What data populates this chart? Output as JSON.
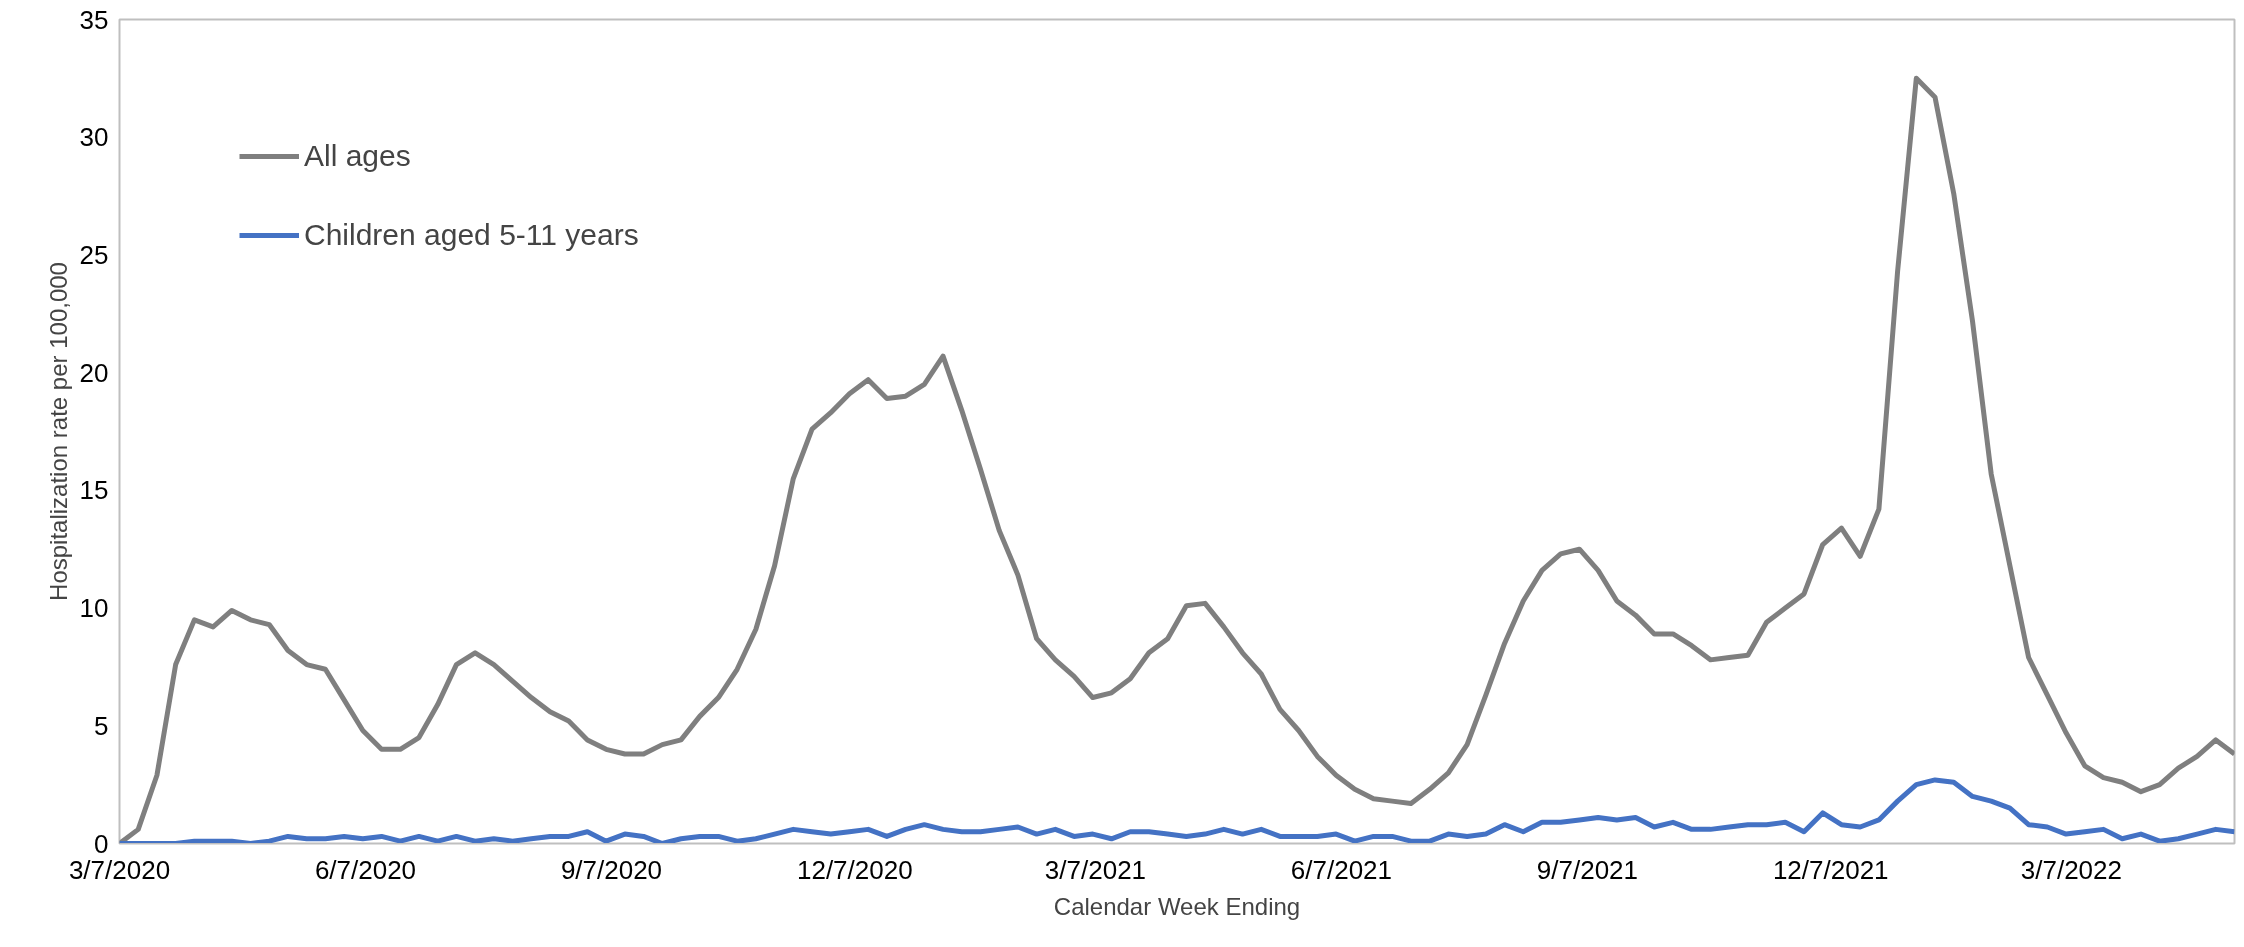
{
  "chart_data": {
    "type": "line",
    "xlabel": "Calendar Week Ending",
    "ylabel": "Hospitalization rate per 100,000",
    "x": [
      "2020-03-07",
      "2020-03-14",
      "2020-03-21",
      "2020-03-28",
      "2020-04-04",
      "2020-04-11",
      "2020-04-18",
      "2020-04-25",
      "2020-05-02",
      "2020-05-09",
      "2020-05-16",
      "2020-05-23",
      "2020-05-30",
      "2020-06-06",
      "2020-06-13",
      "2020-06-20",
      "2020-06-27",
      "2020-07-04",
      "2020-07-11",
      "2020-07-18",
      "2020-07-25",
      "2020-08-01",
      "2020-08-08",
      "2020-08-15",
      "2020-08-22",
      "2020-08-29",
      "2020-09-05",
      "2020-09-12",
      "2020-09-19",
      "2020-09-26",
      "2020-10-03",
      "2020-10-10",
      "2020-10-17",
      "2020-10-24",
      "2020-10-31",
      "2020-11-07",
      "2020-11-14",
      "2020-11-21",
      "2020-11-28",
      "2020-12-05",
      "2020-12-12",
      "2020-12-19",
      "2020-12-26",
      "2021-01-02",
      "2021-01-09",
      "2021-01-16",
      "2021-01-23",
      "2021-01-30",
      "2021-02-06",
      "2021-02-13",
      "2021-02-20",
      "2021-02-27",
      "2021-03-06",
      "2021-03-13",
      "2021-03-20",
      "2021-03-27",
      "2021-04-03",
      "2021-04-10",
      "2021-04-17",
      "2021-04-24",
      "2021-05-01",
      "2021-05-08",
      "2021-05-15",
      "2021-05-22",
      "2021-05-29",
      "2021-06-05",
      "2021-06-12",
      "2021-06-19",
      "2021-06-26",
      "2021-07-03",
      "2021-07-10",
      "2021-07-17",
      "2021-07-24",
      "2021-07-31",
      "2021-08-07",
      "2021-08-14",
      "2021-08-21",
      "2021-08-28",
      "2021-09-04",
      "2021-09-11",
      "2021-09-18",
      "2021-09-25",
      "2021-10-02",
      "2021-10-09",
      "2021-10-16",
      "2021-10-23",
      "2021-10-30",
      "2021-11-06",
      "2021-11-13",
      "2021-11-20",
      "2021-11-27",
      "2021-12-04",
      "2021-12-11",
      "2021-12-18",
      "2021-12-25",
      "2022-01-01",
      "2022-01-08",
      "2022-01-15",
      "2022-01-22",
      "2022-01-29",
      "2022-02-05",
      "2022-02-12",
      "2022-02-19",
      "2022-02-26",
      "2022-03-05",
      "2022-03-12",
      "2022-03-19",
      "2022-03-26",
      "2022-04-02",
      "2022-04-09",
      "2022-04-16",
      "2022-04-23",
      "2022-04-30",
      "2022-05-07"
    ],
    "series": [
      {
        "name": "All ages",
        "color": "#7f7f7f",
        "values": [
          0,
          0.6,
          2.9,
          7.6,
          9.5,
          9.2,
          9.9,
          9.5,
          9.3,
          8.2,
          7.6,
          7.4,
          6.1,
          4.8,
          4.0,
          4.0,
          4.5,
          5.9,
          7.6,
          8.1,
          7.6,
          6.9,
          6.2,
          5.6,
          5.2,
          4.4,
          4.0,
          3.8,
          3.8,
          4.2,
          4.4,
          5.4,
          6.2,
          7.4,
          9.1,
          11.8,
          15.5,
          17.6,
          18.3,
          19.1,
          19.7,
          18.9,
          19.0,
          19.5,
          20.7,
          18.4,
          15.9,
          13.3,
          11.4,
          8.7,
          7.8,
          7.1,
          6.2,
          6.4,
          7.0,
          8.1,
          8.7,
          10.1,
          10.2,
          9.2,
          8.1,
          7.2,
          5.7,
          4.8,
          3.7,
          2.9,
          2.3,
          1.9,
          1.8,
          1.7,
          2.3,
          3.0,
          4.2,
          6.3,
          8.5,
          10.3,
          11.6,
          12.3,
          12.5,
          11.6,
          10.3,
          9.7,
          8.9,
          8.9,
          8.4,
          7.8,
          7.9,
          8.0,
          9.4,
          10.0,
          10.6,
          12.7,
          13.4,
          12.2,
          14.2,
          24.3,
          32.5,
          31.7,
          27.6,
          22.2,
          15.7,
          11.8,
          7.9,
          6.3,
          4.7,
          3.3,
          2.8,
          2.6,
          2.2,
          2.5,
          3.2,
          3.7,
          4.4,
          3.8
        ]
      },
      {
        "name": "Children aged 5-11 years",
        "color": "#4472c4",
        "values": [
          0,
          0,
          0,
          0,
          0.1,
          0.1,
          0.1,
          0,
          0.1,
          0.3,
          0.2,
          0.2,
          0.3,
          0.2,
          0.3,
          0.1,
          0.3,
          0.1,
          0.3,
          0.1,
          0.2,
          0.1,
          0.2,
          0.3,
          0.3,
          0.5,
          0.1,
          0.4,
          0.3,
          0,
          0.2,
          0.3,
          0.3,
          0.1,
          0.2,
          0.4,
          0.6,
          0.5,
          0.4,
          0.5,
          0.6,
          0.3,
          0.6,
          0.8,
          0.6,
          0.5,
          0.5,
          0.6,
          0.7,
          0.4,
          0.6,
          0.3,
          0.4,
          0.2,
          0.5,
          0.5,
          0.4,
          0.3,
          0.4,
          0.6,
          0.4,
          0.6,
          0.3,
          0.3,
          0.3,
          0.4,
          0.1,
          0.3,
          0.3,
          0.1,
          0.1,
          0.4,
          0.3,
          0.4,
          0.8,
          0.5,
          0.9,
          0.9,
          1.0,
          1.1,
          1.0,
          1.1,
          0.7,
          0.9,
          0.6,
          0.6,
          0.7,
          0.8,
          0.8,
          0.9,
          0.5,
          1.3,
          0.8,
          0.7,
          1.0,
          1.8,
          2.5,
          2.7,
          2.6,
          2.0,
          1.8,
          1.5,
          0.8,
          0.7,
          0.4,
          0.5,
          0.6,
          0.2,
          0.4,
          0.1,
          0.2,
          0.4,
          0.6,
          0.5
        ]
      }
    ],
    "xlim": [
      "2020-03-07",
      "2022-05-07"
    ],
    "xticks": [
      {
        "value": "2020-03-07",
        "label": "3/7/2020"
      },
      {
        "value": "2020-06-07",
        "label": "6/7/2020"
      },
      {
        "value": "2020-09-07",
        "label": "9/7/2020"
      },
      {
        "value": "2020-12-07",
        "label": "12/7/2020"
      },
      {
        "value": "2021-03-07",
        "label": "3/7/2021"
      },
      {
        "value": "2021-06-07",
        "label": "6/7/2021"
      },
      {
        "value": "2021-09-07",
        "label": "9/7/2021"
      },
      {
        "value": "2021-12-07",
        "label": "12/7/2021"
      },
      {
        "value": "2022-03-07",
        "label": "3/7/2022"
      }
    ],
    "ylim": [
      0,
      35
    ],
    "yticks": [
      0,
      5,
      10,
      15,
      20,
      25,
      30,
      35
    ],
    "grid": false,
    "legend": "top left",
    "marker": "none",
    "line_style": "solid"
  }
}
